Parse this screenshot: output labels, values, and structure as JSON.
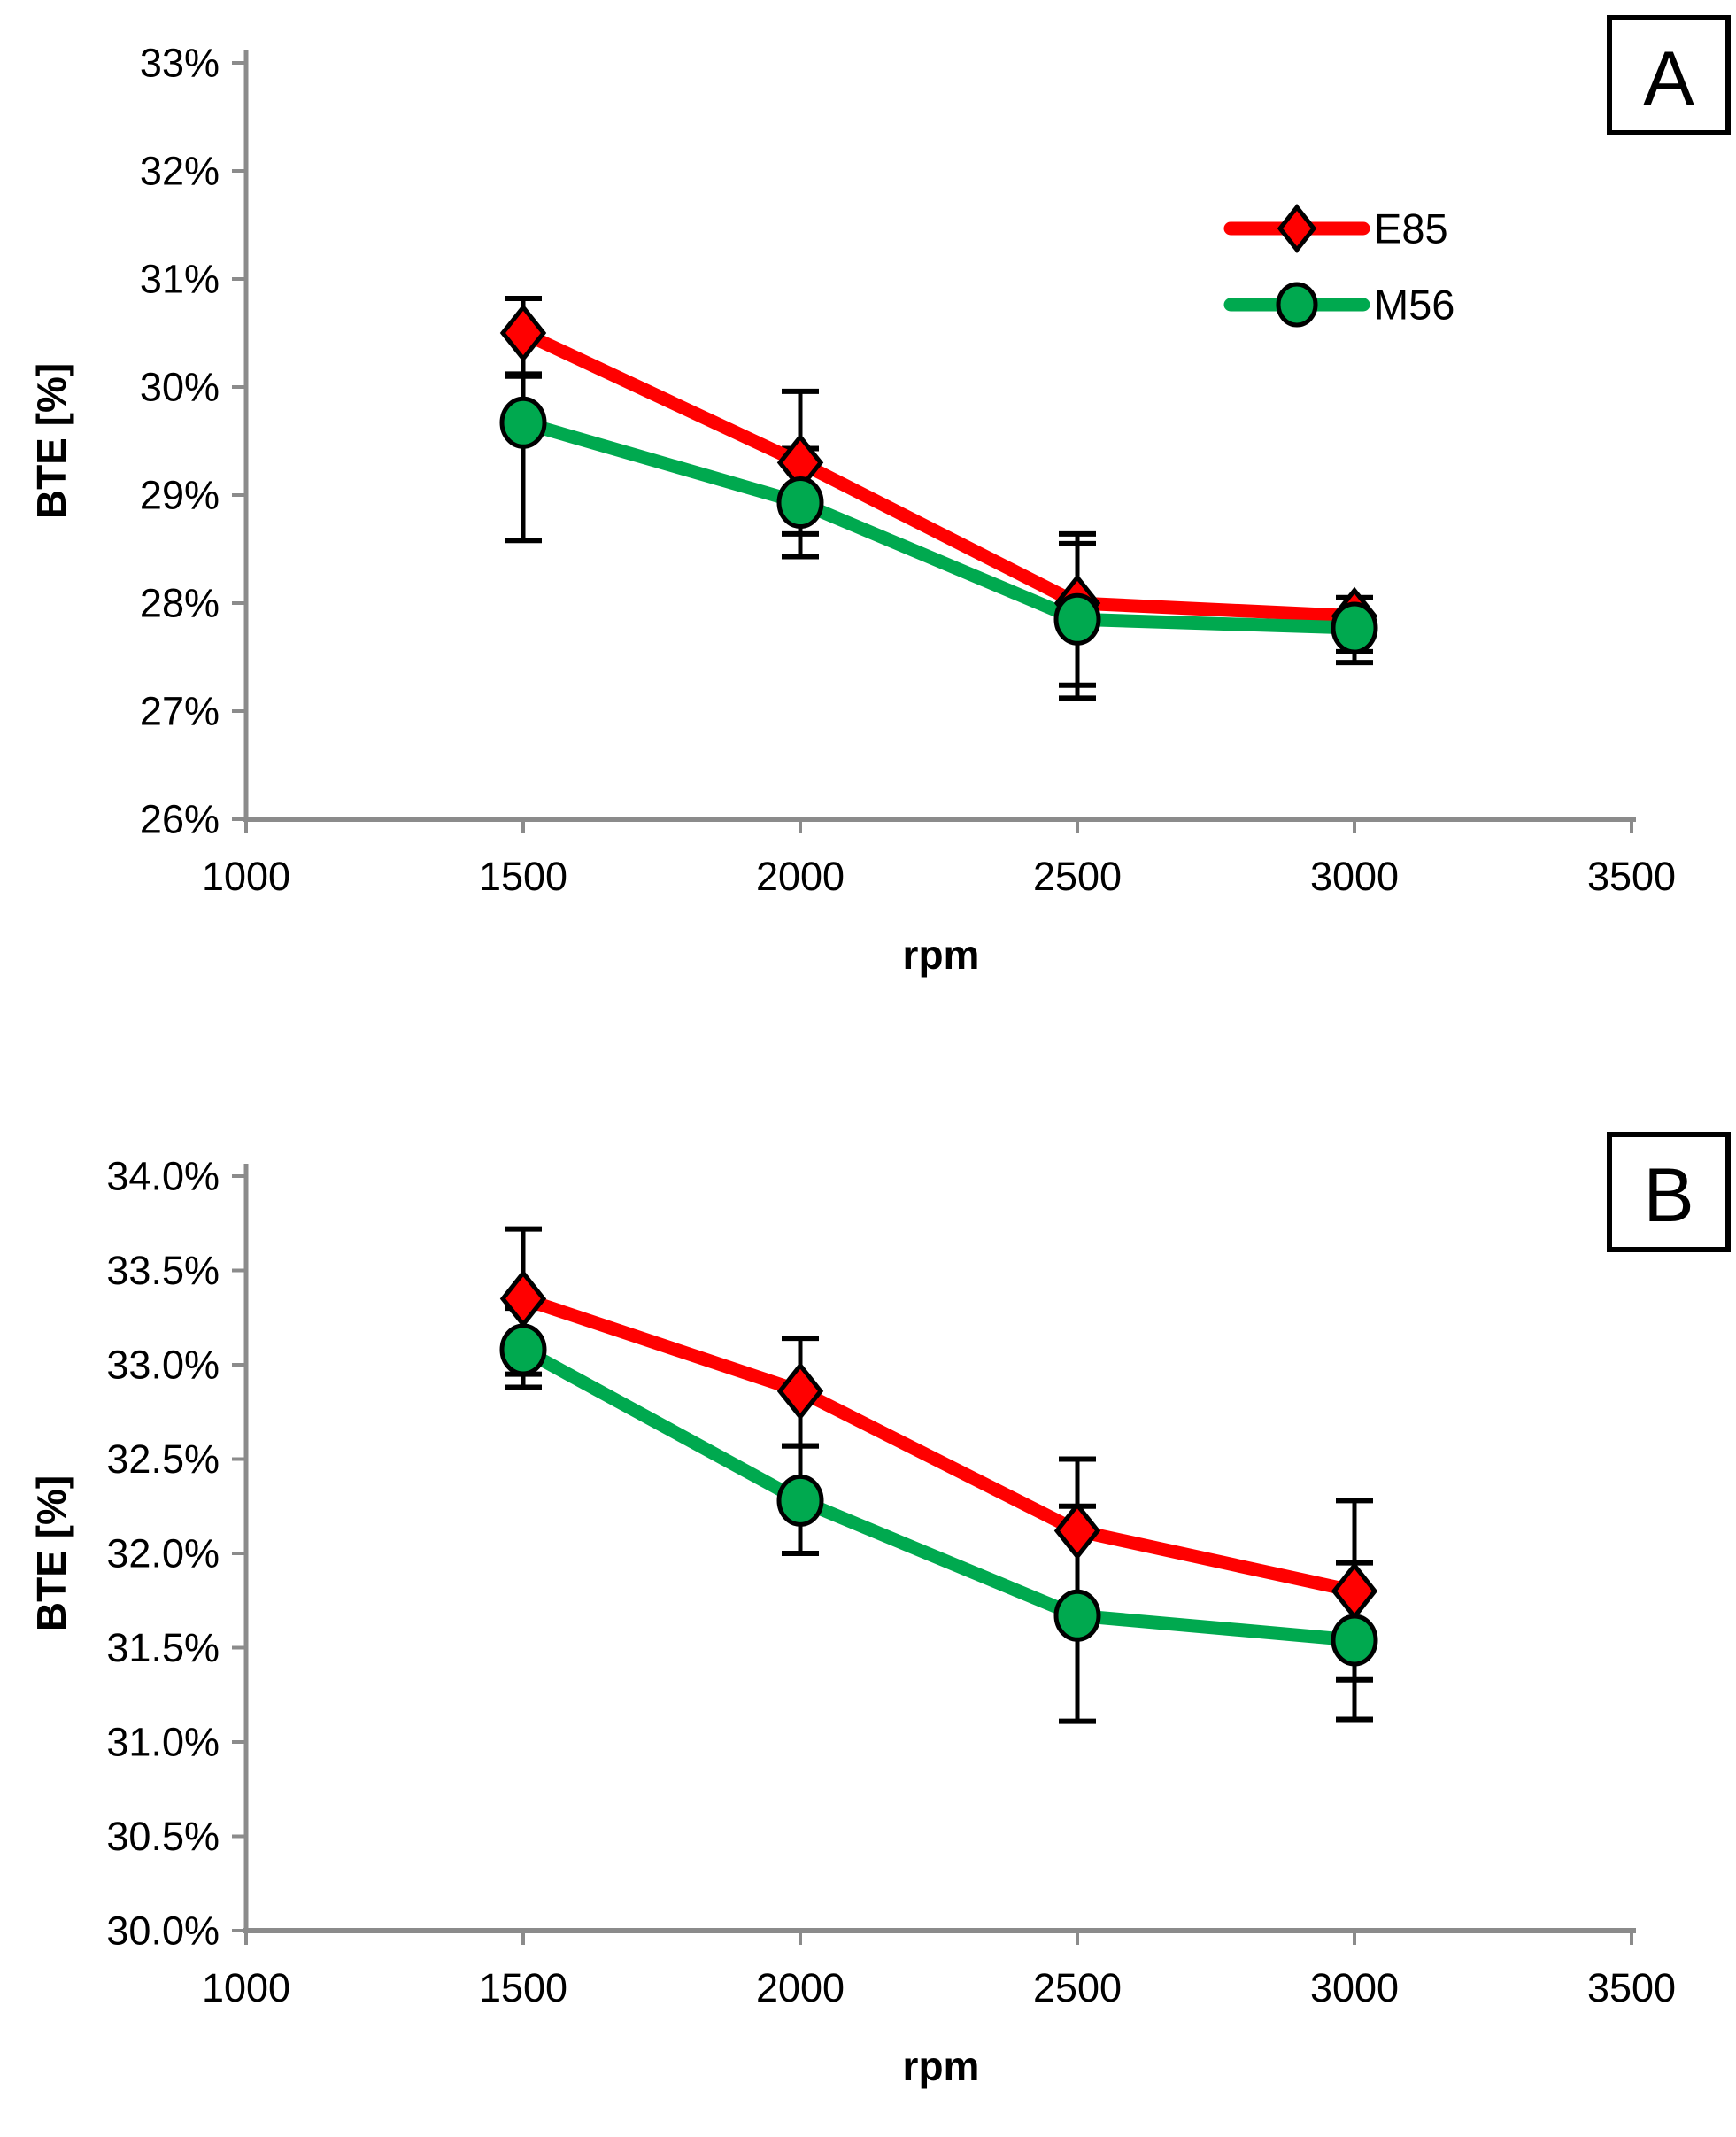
{
  "colors": {
    "background": "#ffffff",
    "axis_line": "#8b8b8b",
    "error_bar": "#000000",
    "text": "#000000",
    "panel_box_border": "#000000",
    "e85_red": "#ff0000",
    "m56_green": "#00a94f"
  },
  "chart_data": [
    {
      "type": "line",
      "panel_label": "A",
      "title": "",
      "xlabel": "rpm",
      "ylabel": "BTE [%]",
      "x": [
        1500,
        2000,
        2500,
        3000
      ],
      "xlim": [
        1000,
        3500
      ],
      "x_ticks": [
        1000,
        1500,
        2000,
        2500,
        3000,
        3500
      ],
      "ylim": [
        26,
        33
      ],
      "y_ticks": [
        26,
        27,
        28,
        29,
        30,
        31,
        32,
        33
      ],
      "y_tick_decimals": 0,
      "y_tick_suffix": "%",
      "grid": false,
      "legend": {
        "visible": true,
        "position": "inside-top-right"
      },
      "series": [
        {
          "name": "E85",
          "color": "#ff0000",
          "marker": "diamond",
          "values": [
            30.5,
            29.3,
            28.0,
            27.88
          ],
          "err_up": [
            0.32,
            0.66,
            0.64,
            0.17
          ],
          "err_down": [
            0.4,
            0.66,
            0.76,
            0.33
          ]
        },
        {
          "name": "M56",
          "color": "#00a94f",
          "marker": "circle",
          "values": [
            29.67,
            28.93,
            27.85,
            27.77
          ],
          "err_up": [
            0.45,
            0.5,
            0.7,
            0.28
          ],
          "err_down": [
            1.09,
            0.5,
            0.73,
            0.32
          ]
        }
      ]
    },
    {
      "type": "line",
      "panel_label": "B",
      "title": "",
      "xlabel": "rpm",
      "ylabel": "BTE [%]",
      "x": [
        1500,
        2000,
        2500,
        3000
      ],
      "xlim": [
        1000,
        3500
      ],
      "x_ticks": [
        1000,
        1500,
        2000,
        2500,
        3000,
        3500
      ],
      "ylim": [
        30.0,
        34.0
      ],
      "y_ticks": [
        30.0,
        30.5,
        31.0,
        31.5,
        32.0,
        32.5,
        33.0,
        33.5,
        34.0
      ],
      "y_tick_decimals": 1,
      "y_tick_suffix": "%",
      "grid": false,
      "legend": {
        "visible": false
      },
      "series": [
        {
          "name": "E85",
          "color": "#ff0000",
          "marker": "diamond",
          "values": [
            33.35,
            32.86,
            32.12,
            31.8
          ],
          "err_up": [
            0.37,
            0.28,
            0.38,
            0.48
          ],
          "err_down": [
            0.4,
            0.29,
            0.41,
            0.47
          ]
        },
        {
          "name": "M56",
          "color": "#00a94f",
          "marker": "circle",
          "values": [
            33.08,
            32.28,
            31.67,
            31.54
          ],
          "err_up": [
            0.22,
            0.29,
            0.58,
            0.41
          ],
          "err_down": [
            0.2,
            0.28,
            0.56,
            0.42
          ]
        }
      ]
    }
  ]
}
